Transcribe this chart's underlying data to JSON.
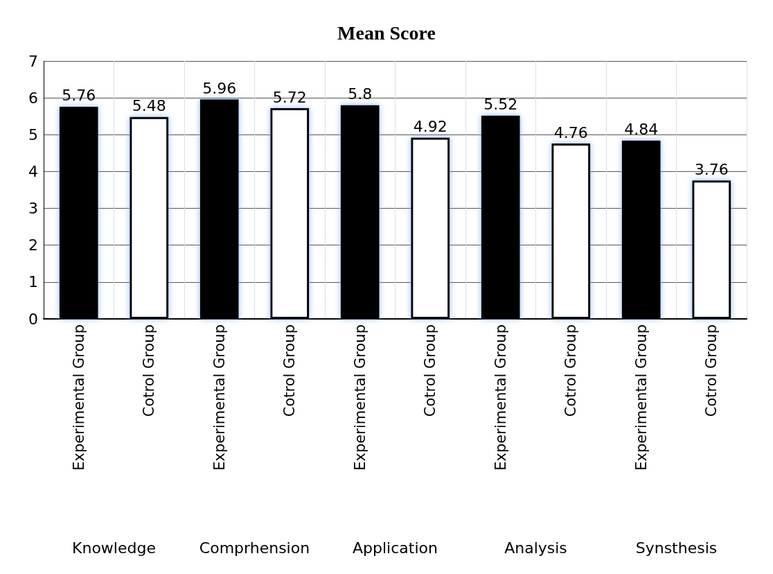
{
  "chart_data": {
    "type": "bar",
    "title": "Mean Score",
    "categories": [
      "Experimental Group",
      "Cotrol Group",
      "Experimental Group",
      "Cotrol Group",
      "Experimental Group",
      "Cotrol Group",
      "Experimental Group",
      "Cotrol Group",
      "Experimental Group",
      "Cotrol Group"
    ],
    "values": [
      5.76,
      5.48,
      5.96,
      5.72,
      5.8,
      4.92,
      5.52,
      4.76,
      4.84,
      3.76
    ],
    "colors": [
      "#000000",
      "#ffffff",
      "#000000",
      "#ffffff",
      "#000000",
      "#ffffff",
      "#000000",
      "#ffffff",
      "#000000",
      "#ffffff"
    ],
    "ylim": [
      0,
      7
    ],
    "yticks": [
      0,
      1,
      2,
      3,
      4,
      5,
      6,
      7
    ],
    "grid": true,
    "data_labels": true,
    "annotations": [
      "Knowledge",
      "Comprhension",
      "Application",
      "Analysis",
      "Synsthesis"
    ]
  }
}
